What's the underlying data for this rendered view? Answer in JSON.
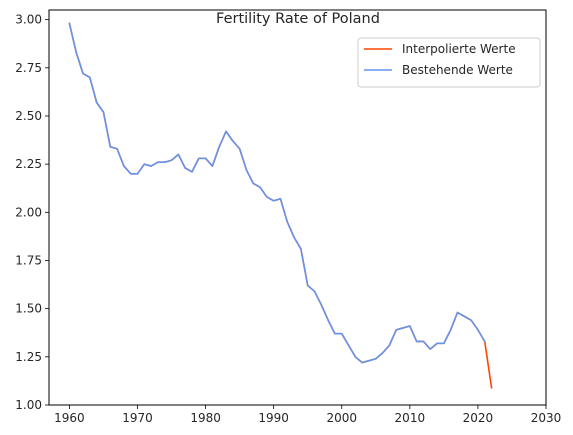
{
  "chart_data": {
    "type": "line",
    "title": "Fertility Rate of Poland",
    "xlabel": "",
    "ylabel": "",
    "xlim": [
      1957,
      2030
    ],
    "ylim": [
      1.0,
      3.05
    ],
    "xticks": [
      1960,
      1970,
      1980,
      1990,
      2000,
      2010,
      2020,
      2030
    ],
    "yticks": [
      1.0,
      1.25,
      1.5,
      1.75,
      2.0,
      2.25,
      2.5,
      2.75,
      3.0
    ],
    "grid": false,
    "legend_position": "top-right",
    "series": [
      {
        "name": "Interpolierte Werte",
        "color": "#ff4500",
        "x": [
          1960,
          1961,
          1962,
          1963,
          1964,
          1965,
          1966,
          1967,
          1968,
          1969,
          1970,
          1971,
          1972,
          1973,
          1974,
          1975,
          1976,
          1977,
          1978,
          1979,
          1980,
          1981,
          1982,
          1983,
          1984,
          1985,
          1986,
          1987,
          1988,
          1989,
          1990,
          1991,
          1992,
          1993,
          1994,
          1995,
          1996,
          1997,
          1998,
          1999,
          2000,
          2001,
          2002,
          2003,
          2004,
          2005,
          2006,
          2007,
          2008,
          2009,
          2010,
          2011,
          2012,
          2013,
          2014,
          2015,
          2016,
          2017,
          2018,
          2019,
          2020,
          2021,
          2022
        ],
        "y": [
          2.98,
          2.83,
          2.72,
          2.7,
          2.57,
          2.52,
          2.34,
          2.33,
          2.24,
          2.2,
          2.2,
          2.25,
          2.24,
          2.26,
          2.26,
          2.27,
          2.3,
          2.23,
          2.21,
          2.28,
          2.28,
          2.24,
          2.34,
          2.42,
          2.37,
          2.33,
          2.22,
          2.15,
          2.13,
          2.08,
          2.06,
          2.07,
          1.95,
          1.87,
          1.81,
          1.62,
          1.59,
          1.52,
          1.44,
          1.37,
          1.37,
          1.31,
          1.25,
          1.22,
          1.23,
          1.24,
          1.27,
          1.31,
          1.39,
          1.4,
          1.41,
          1.33,
          1.33,
          1.29,
          1.32,
          1.32,
          1.39,
          1.48,
          1.46,
          1.44,
          1.39,
          1.33,
          1.09
        ]
      },
      {
        "name": "Bestehende Werte",
        "color": "#6495ed",
        "x": [
          1960,
          1961,
          1962,
          1963,
          1964,
          1965,
          1966,
          1967,
          1968,
          1969,
          1970,
          1971,
          1972,
          1973,
          1974,
          1975,
          1976,
          1977,
          1978,
          1979,
          1980,
          1981,
          1982,
          1983,
          1984,
          1985,
          1986,
          1987,
          1988,
          1989,
          1990,
          1991,
          1992,
          1993,
          1994,
          1995,
          1996,
          1997,
          1998,
          1999,
          2000,
          2001,
          2002,
          2003,
          2004,
          2005,
          2006,
          2007,
          2008,
          2009,
          2010,
          2011,
          2012,
          2013,
          2014,
          2015,
          2016,
          2017,
          2018,
          2019,
          2020,
          2021
        ],
        "y": [
          2.98,
          2.83,
          2.72,
          2.7,
          2.57,
          2.52,
          2.34,
          2.33,
          2.24,
          2.2,
          2.2,
          2.25,
          2.24,
          2.26,
          2.26,
          2.27,
          2.3,
          2.23,
          2.21,
          2.28,
          2.28,
          2.24,
          2.34,
          2.42,
          2.37,
          2.33,
          2.22,
          2.15,
          2.13,
          2.08,
          2.06,
          2.07,
          1.95,
          1.87,
          1.81,
          1.62,
          1.59,
          1.52,
          1.44,
          1.37,
          1.37,
          1.31,
          1.25,
          1.22,
          1.23,
          1.24,
          1.27,
          1.31,
          1.39,
          1.4,
          1.41,
          1.33,
          1.33,
          1.29,
          1.32,
          1.32,
          1.39,
          1.48,
          1.46,
          1.44,
          1.39,
          1.33
        ]
      }
    ]
  }
}
